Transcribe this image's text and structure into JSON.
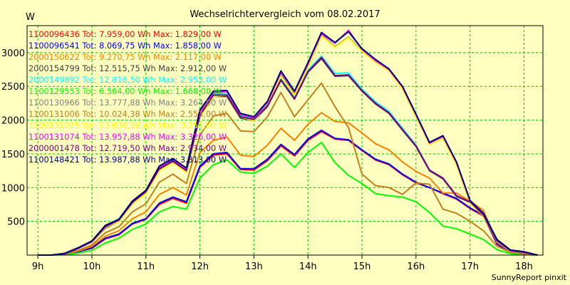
{
  "chart_data": {
    "type": "line",
    "title": "Wechselrichtervergleich vom 08.02.2017",
    "ylabel": "W",
    "xlabel": "",
    "footer": "SunnyReport pinxit",
    "xlim": [
      8.8,
      18.35
    ],
    "ylim": [
      0,
      3400
    ],
    "x_ticks": [
      {
        "value": 9,
        "label": "9h"
      },
      {
        "value": 10,
        "label": "10h"
      },
      {
        "value": 11,
        "label": "11h"
      },
      {
        "value": 12,
        "label": "12h"
      },
      {
        "value": 13,
        "label": "13h"
      },
      {
        "value": 14,
        "label": "14h"
      },
      {
        "value": 15,
        "label": "15h"
      },
      {
        "value": 16,
        "label": "16h"
      },
      {
        "value": 17,
        "label": "17h"
      },
      {
        "value": 18,
        "label": "18h"
      }
    ],
    "y_ticks": [
      {
        "value": 500,
        "label": "500"
      },
      {
        "value": 1000,
        "label": "1000"
      },
      {
        "value": 1500,
        "label": "1500"
      },
      {
        "value": 2000,
        "label": "2000"
      },
      {
        "value": 2500,
        "label": "2500"
      },
      {
        "value": 3000,
        "label": "3000"
      }
    ],
    "grid": true,
    "legend_position": "top-left",
    "x": [
      9.0,
      9.25,
      9.5,
      9.75,
      10.0,
      10.25,
      10.5,
      10.75,
      11.0,
      11.25,
      11.5,
      11.75,
      12.0,
      12.25,
      12.5,
      12.75,
      13.0,
      13.25,
      13.5,
      13.75,
      14.0,
      14.25,
      14.5,
      14.75,
      15.0,
      15.25,
      15.5,
      15.75,
      16.0,
      16.25,
      16.5,
      16.75,
      17.0,
      17.25,
      17.5,
      17.75,
      18.0,
      18.25
    ],
    "series": [
      {
        "name": "1100096436 Tot: 7.959,00 Wh Max: 1.829,00 W",
        "color": "#ff0000",
        "values": [
          0,
          0,
          10,
          50,
          100,
          240,
          300,
          460,
          530,
          750,
          840,
          770,
          1300,
          1480,
          1500,
          1270,
          1260,
          1400,
          1620,
          1470,
          1700,
          1830,
          1720,
          1700,
          1550,
          1410,
          1340,
          1190,
          1070,
          1000,
          910,
          830,
          690,
          580,
          160,
          40,
          25,
          0
        ]
      },
      {
        "name": "1100096541 Tot: 8.069,75 Wh Max: 1.858,00 W",
        "color": "#0000ff",
        "values": [
          0,
          0,
          10,
          50,
          110,
          250,
          310,
          470,
          540,
          770,
          860,
          790,
          1320,
          1500,
          1520,
          1280,
          1280,
          1420,
          1640,
          1490,
          1720,
          1850,
          1730,
          1710,
          1560,
          1420,
          1350,
          1200,
          1080,
          1000,
          920,
          840,
          700,
          590,
          170,
          45,
          30,
          0
        ]
      },
      {
        "name": "2000150622 Tot: 9.270,75 Wh Max: 2.117,00 W",
        "color": "#ff8000",
        "values": [
          0,
          0,
          15,
          60,
          130,
          280,
          360,
          540,
          640,
          900,
          1000,
          890,
          1520,
          1700,
          1750,
          1480,
          1460,
          1630,
          1880,
          1700,
          1940,
          2110,
          1980,
          1960,
          1810,
          1650,
          1560,
          1380,
          1240,
          1140,
          920,
          920,
          800,
          660,
          190,
          55,
          30,
          0
        ]
      },
      {
        "name": "2000154799 Tot: 12.515,75 Wh Max: 2.912,00 W",
        "color": "#404040",
        "values": [
          0,
          0,
          20,
          100,
          190,
          400,
          500,
          760,
          920,
          1260,
          1380,
          1230,
          2050,
          2350,
          2350,
          2030,
          1990,
          2200,
          2590,
          2310,
          2710,
          2910,
          2650,
          2660,
          2430,
          2240,
          2100,
          1850,
          1610,
          1250,
          1130,
          870,
          780,
          580,
          200,
          60,
          40,
          0
        ]
      },
      {
        "name": "2000149892 Tot: 12.816,50 Wh Max: 2.953,00 W",
        "color": "#00ffff",
        "values": [
          0,
          0,
          25,
          110,
          210,
          430,
          540,
          800,
          950,
          1290,
          1400,
          1260,
          2080,
          2390,
          2390,
          2060,
          2020,
          2230,
          2610,
          2340,
          2740,
          2950,
          2690,
          2700,
          2460,
          2270,
          2130,
          1880,
          1630,
          1260,
          1140,
          880,
          790,
          590,
          210,
          65,
          40,
          0
        ]
      },
      {
        "name": "1100129553 Tot: 6.564,00 Wh Max: 1.668,00 W",
        "color": "#00ff00",
        "values": [
          0,
          0,
          5,
          30,
          70,
          180,
          250,
          380,
          460,
          640,
          720,
          680,
          1140,
          1340,
          1410,
          1230,
          1210,
          1320,
          1500,
          1300,
          1520,
          1670,
          1370,
          1180,
          1060,
          910,
          880,
          860,
          790,
          630,
          430,
          390,
          310,
          230,
          80,
          20,
          10,
          0
        ]
      },
      {
        "name": "1100130966 Tot: 13.777,88 Wh Max: 3.264,00 W",
        "color": "#808080",
        "values": [
          0,
          0,
          20,
          100,
          200,
          420,
          510,
          780,
          940,
          1290,
          1410,
          1260,
          2100,
          2400,
          2420,
          2080,
          2030,
          2260,
          2690,
          2400,
          2810,
          3260,
          3090,
          3230,
          3030,
          2860,
          2740,
          2480,
          2070,
          1640,
          1740,
          1350,
          780,
          590,
          210,
          65,
          40,
          0
        ]
      },
      {
        "name": "1100131006 Tot: 10.024,38 Wh Max: 2.553,00 W",
        "color": "#c08020",
        "values": [
          0,
          0,
          15,
          70,
          150,
          330,
          420,
          640,
          760,
          1080,
          1200,
          1060,
          1780,
          2060,
          2100,
          1840,
          1830,
          2050,
          2410,
          2050,
          2300,
          2550,
          2200,
          1890,
          1200,
          1030,
          1000,
          900,
          1070,
          1050,
          680,
          620,
          500,
          360,
          130,
          40,
          20,
          0
        ]
      },
      {
        "name": "1100131025 Tot: 13.638,38 Wh Max: 3.251,00 W",
        "color": "#ffff00",
        "values": [
          0,
          0,
          20,
          100,
          190,
          410,
          500,
          760,
          910,
          1250,
          1370,
          1230,
          2040,
          2350,
          2370,
          2050,
          1990,
          2220,
          2650,
          2370,
          2780,
          3250,
          3080,
          3220,
          3020,
          2860,
          2730,
          2460,
          2050,
          1640,
          1730,
          1330,
          770,
          580,
          200,
          60,
          40,
          0
        ]
      },
      {
        "name": "1100131074 Tot: 13.957,88 Wh Max: 3.326,00 W",
        "color": "#ff00ff",
        "values": [
          0,
          0,
          25,
          110,
          210,
          430,
          520,
          790,
          950,
          1310,
          1420,
          1280,
          2130,
          2420,
          2430,
          2090,
          2040,
          2270,
          2710,
          2420,
          2830,
          3280,
          3140,
          3330,
          3050,
          2880,
          2750,
          2490,
          2080,
          1660,
          1760,
          1370,
          800,
          610,
          220,
          70,
          50,
          0
        ]
      },
      {
        "name": "2000001478 Tot: 12.719,50 Wh Max: 2.934,00 W",
        "color": "#800080",
        "values": [
          0,
          0,
          20,
          100,
          200,
          420,
          520,
          780,
          940,
          1280,
          1390,
          1250,
          2070,
          2370,
          2370,
          2050,
          2010,
          2210,
          2600,
          2320,
          2720,
          2930,
          2660,
          2670,
          2440,
          2250,
          2110,
          1860,
          1620,
          1260,
          1140,
          880,
          790,
          590,
          210,
          65,
          40,
          0
        ]
      },
      {
        "name": "1100148421 Tot: 13.987,88 Wh Max: 3.313,00 W",
        "color": "#000080",
        "values": [
          0,
          0,
          25,
          110,
          210,
          440,
          530,
          800,
          960,
          1320,
          1430,
          1290,
          2150,
          2430,
          2440,
          2100,
          2050,
          2280,
          2730,
          2430,
          2850,
          3300,
          3150,
          3310,
          3060,
          2900,
          2760,
          2500,
          2090,
          1670,
          1770,
          1380,
          810,
          620,
          230,
          75,
          50,
          0
        ]
      }
    ]
  }
}
